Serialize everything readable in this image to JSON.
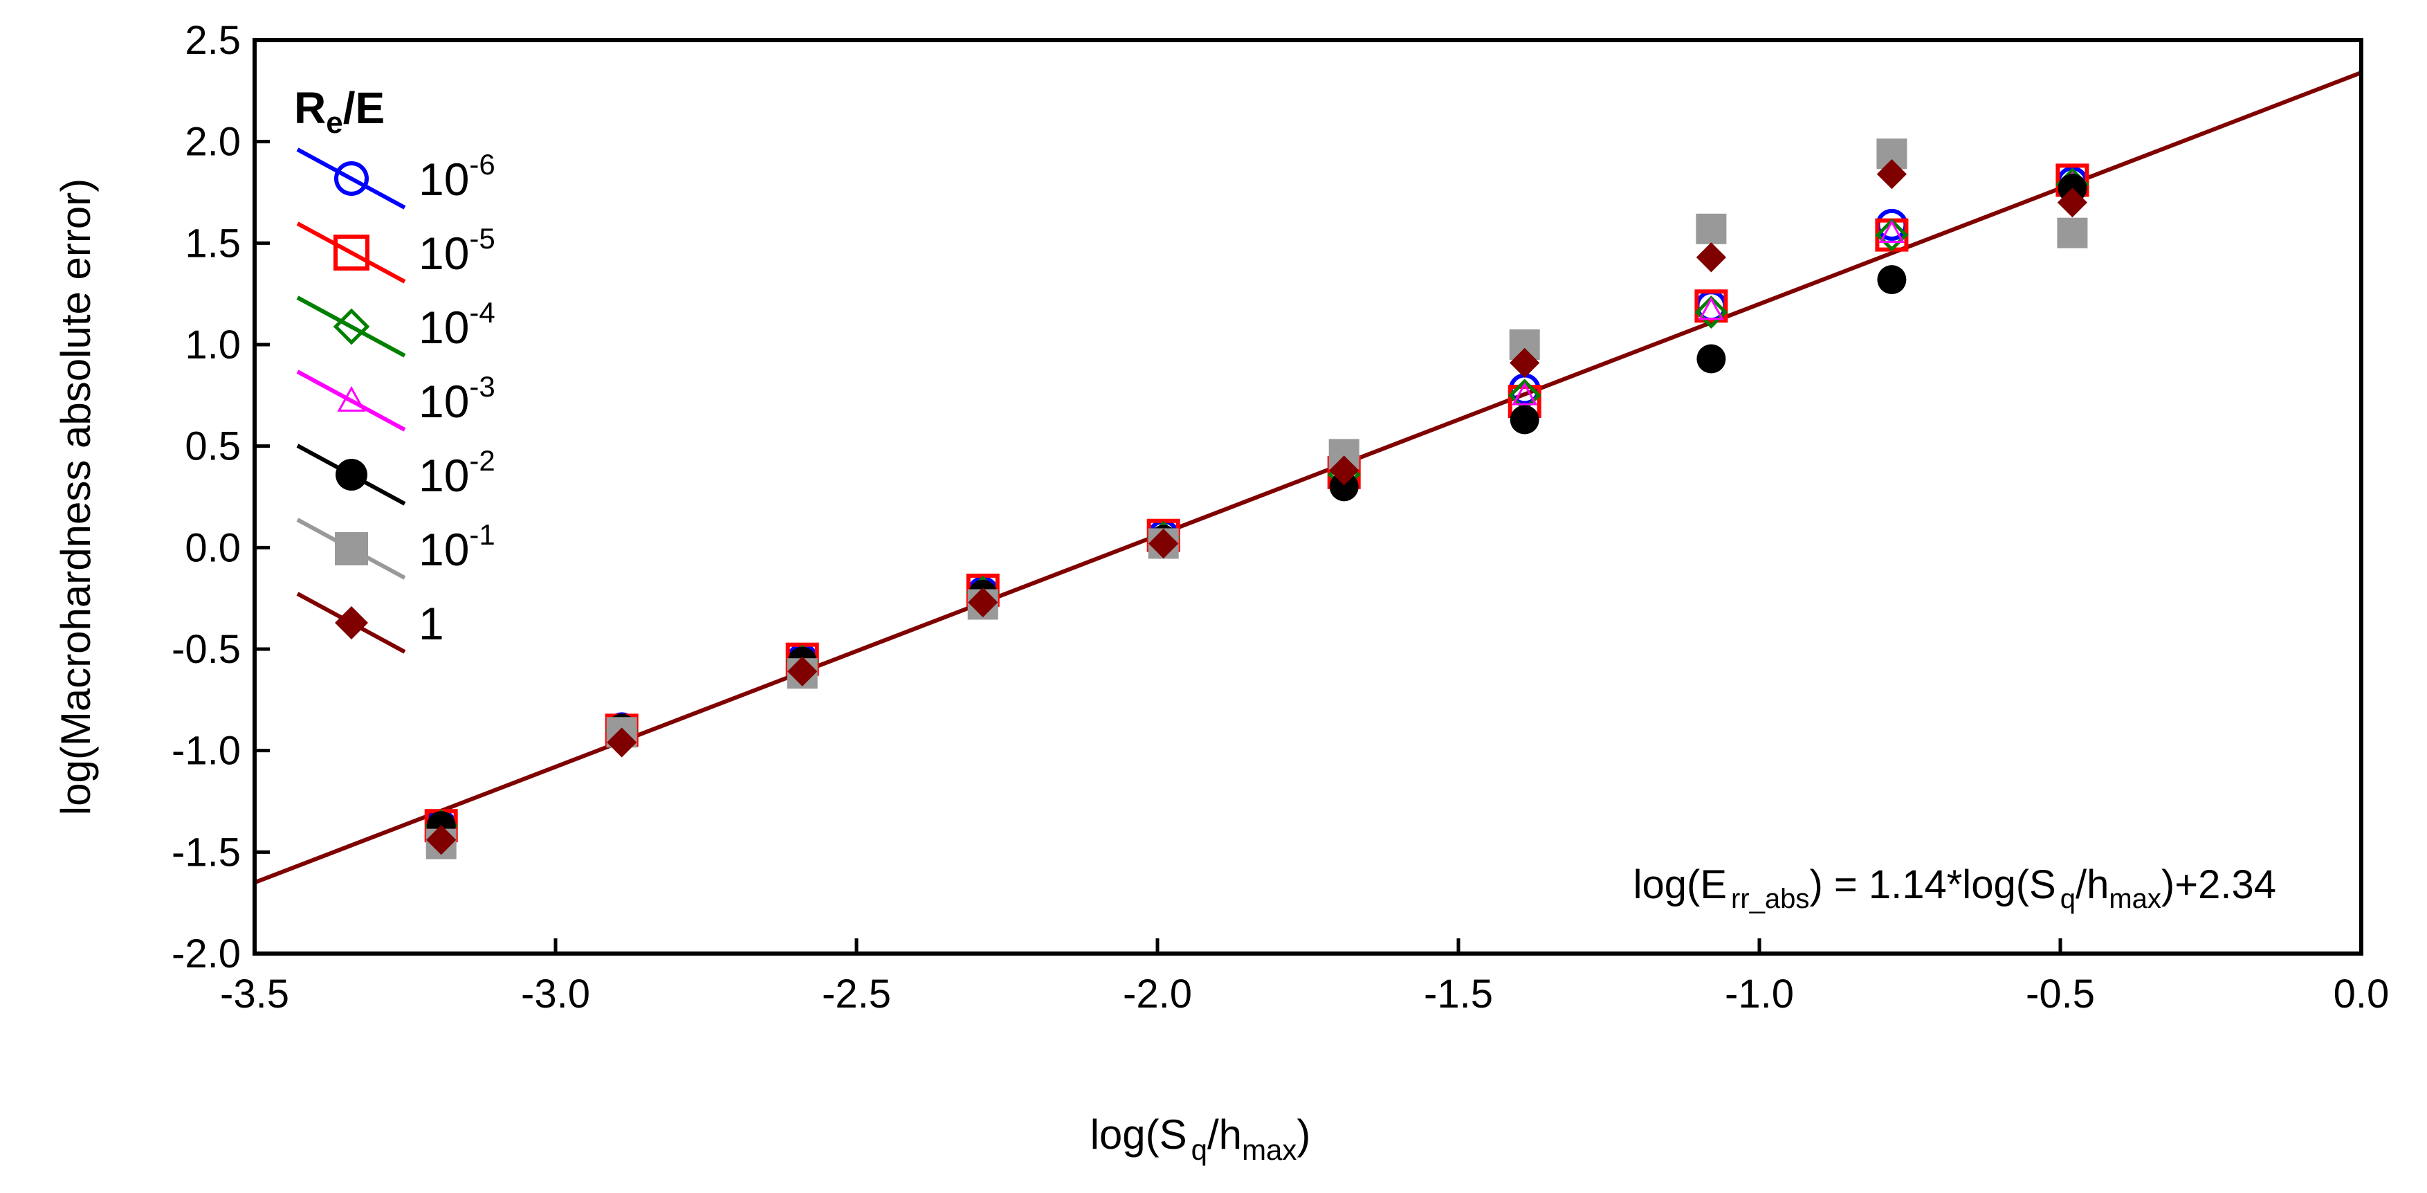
{
  "chart_data": {
    "type": "scatter",
    "xlabel": {
      "base": "log(S",
      "sub1": "q",
      "mid": "/h",
      "sub2": "max",
      "end": ")"
    },
    "ylabel": "log(Macrohardness absolute error)",
    "xlim": [
      -3.5,
      0.0
    ],
    "ylim": [
      -2.0,
      2.5
    ],
    "xticks": [
      -3.5,
      -3.0,
      -2.5,
      -2.0,
      -1.5,
      -1.0,
      -0.5,
      0.0
    ],
    "xtick_labels": [
      "-3.5",
      "-3.0",
      "-2.5",
      "-2.0",
      "-1.5",
      "-1.0",
      "-0.5",
      "0.0"
    ],
    "yticks": [
      -2.0,
      -1.5,
      -1.0,
      -0.5,
      0.0,
      0.5,
      1.0,
      1.5,
      2.0,
      2.5
    ],
    "ytick_labels": [
      "-2.0",
      "-1.5",
      "-1.0",
      "-0.5",
      "0.0",
      "0.5",
      "1.0",
      "1.5",
      "2.0",
      "2.5"
    ],
    "grid": false,
    "legend": {
      "placement": "top-left",
      "title_main": "R",
      "title_sub": "e",
      "title_end": "/E"
    },
    "x": [
      -3.19,
      -2.89,
      -2.59,
      -2.29,
      -1.99,
      -1.69,
      -1.39,
      -1.08,
      -0.78,
      -0.48
    ],
    "series": [
      {
        "name": "10^-6",
        "label_base": "10",
        "label_exp": "-6",
        "color": "#0000ff",
        "marker": "circle-open",
        "values": [
          -1.37,
          -0.89,
          -0.55,
          -0.22,
          0.06,
          0.36,
          0.78,
          1.19,
          1.59,
          1.8
        ]
      },
      {
        "name": "10^-5",
        "label_base": "10",
        "label_exp": "-5",
        "color": "#ff0000",
        "marker": "square-open",
        "values": [
          -1.37,
          -0.9,
          -0.55,
          -0.21,
          0.06,
          0.37,
          0.72,
          1.19,
          1.54,
          1.81
        ]
      },
      {
        "name": "10^-4",
        "label_base": "10",
        "label_exp": "-4",
        "color": "#008000",
        "marker": "diamond-open",
        "values": [
          -1.37,
          -0.9,
          -0.56,
          -0.22,
          0.05,
          0.36,
          0.75,
          1.16,
          1.54,
          1.79
        ]
      },
      {
        "name": "10^-3",
        "label_base": "10",
        "label_exp": "-3",
        "color": "#ff00ff",
        "marker": "triangle-open",
        "values": [
          -1.37,
          -0.89,
          -0.55,
          -0.22,
          0.05,
          0.35,
          0.75,
          1.17,
          1.55,
          1.79
        ]
      },
      {
        "name": "10^-2",
        "label_base": "10",
        "label_exp": "-2",
        "color": "#000000",
        "marker": "circle-filled",
        "values": [
          -1.37,
          -0.89,
          -0.56,
          -0.23,
          0.04,
          0.3,
          0.63,
          0.93,
          1.32,
          1.77
        ]
      },
      {
        "name": "10^-1",
        "label_base": "10",
        "label_exp": "-1",
        "color": "#999999",
        "marker": "square-filled",
        "values": [
          -1.46,
          -0.91,
          -0.62,
          -0.28,
          0.02,
          0.46,
          1.0,
          1.57,
          1.94,
          1.55
        ]
      },
      {
        "name": "1",
        "label_base": "1",
        "label_exp": "",
        "color": "#800000",
        "marker": "diamond-filled",
        "values": [
          -1.44,
          -0.96,
          -0.61,
          -0.27,
          0.02,
          0.38,
          0.91,
          1.43,
          1.84,
          1.7
        ]
      }
    ],
    "fit": {
      "slope": 1.14,
      "intercept": 2.34,
      "color": "#800000",
      "label_pre": "log(E",
      "label_sub1": "rr_abs",
      "label_mid": ") = 1.14*log(S",
      "label_sub2": "q",
      "label_mid2": "/h",
      "label_sub3": "max",
      "label_end": ")+2.34"
    }
  }
}
